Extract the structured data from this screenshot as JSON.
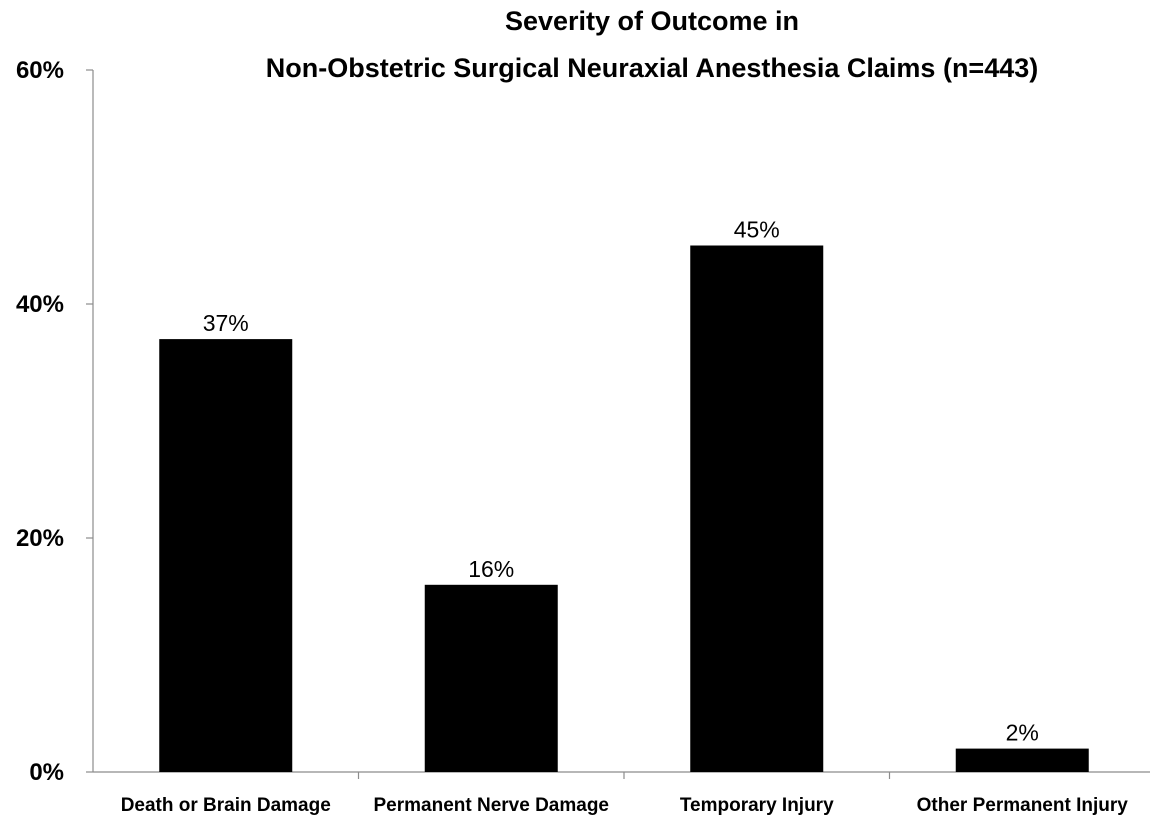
{
  "chart_data": {
    "type": "bar",
    "title_lines": [
      "Severity of Outcome in",
      "Non-Obstetric Surgical Neuraxial Anesthesia Claims (n=443)"
    ],
    "categories": [
      "Death or Brain Damage",
      "Permanent Nerve Damage",
      "Temporary Injury",
      "Other Permanent Injury"
    ],
    "values": [
      37,
      16,
      45,
      2
    ],
    "data_labels": [
      "37%",
      "16%",
      "45%",
      "2%"
    ],
    "y_ticks": [
      0,
      20,
      40,
      60
    ],
    "y_tick_labels": [
      "0%",
      "20%",
      "40%",
      "60%"
    ],
    "ylim": [
      0,
      60
    ],
    "xlabel": "",
    "ylabel": "",
    "grid": false,
    "legend": "none",
    "bar_color": "#000000",
    "axis_color": "#8c8c8c"
  }
}
